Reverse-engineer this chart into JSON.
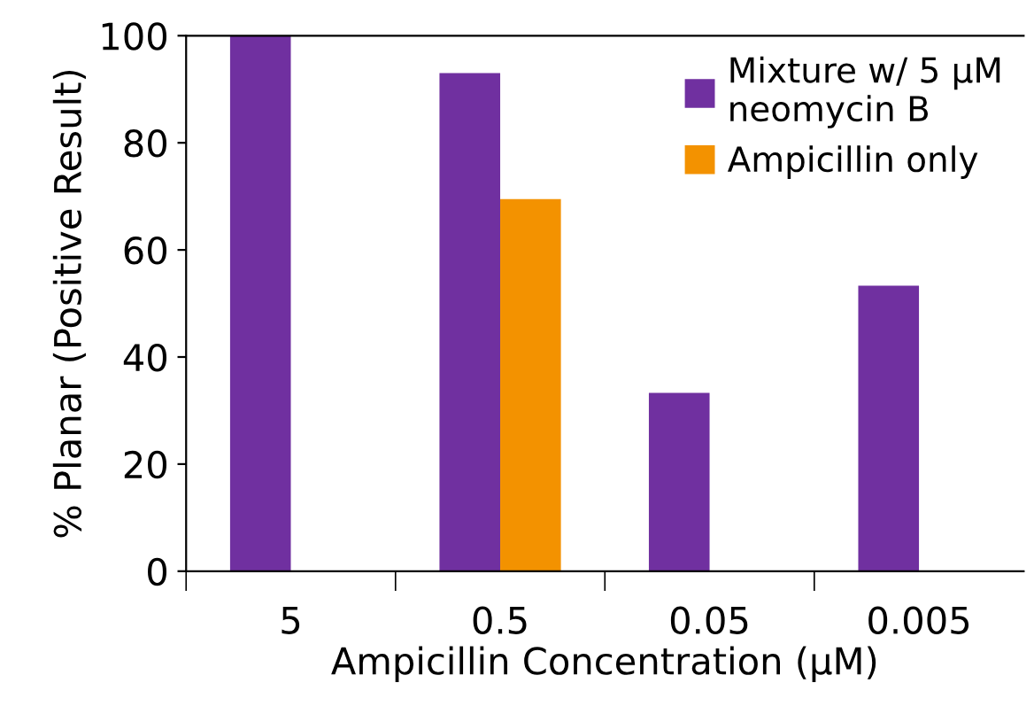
{
  "chart_data": {
    "type": "bar",
    "xlabel": "Ampicillin Concentration (µM)",
    "ylabel": "% Planar (Positive Result)",
    "categories": [
      "5",
      "0.5",
      "0.05",
      "0.005"
    ],
    "series": [
      {
        "name": "Mixture w/ 5 µM\nneomycin B",
        "color": "#7030a0",
        "values": [
          100,
          93,
          33.3,
          53.3
        ]
      },
      {
        "name": "Ampicillin only",
        "color": "#f39200",
        "values": [
          null,
          69.5,
          null,
          null
        ]
      }
    ],
    "ylim": [
      0,
      100
    ],
    "yticks": [
      0,
      20,
      40,
      60,
      80,
      100
    ],
    "grid": false,
    "legend": "top right"
  }
}
